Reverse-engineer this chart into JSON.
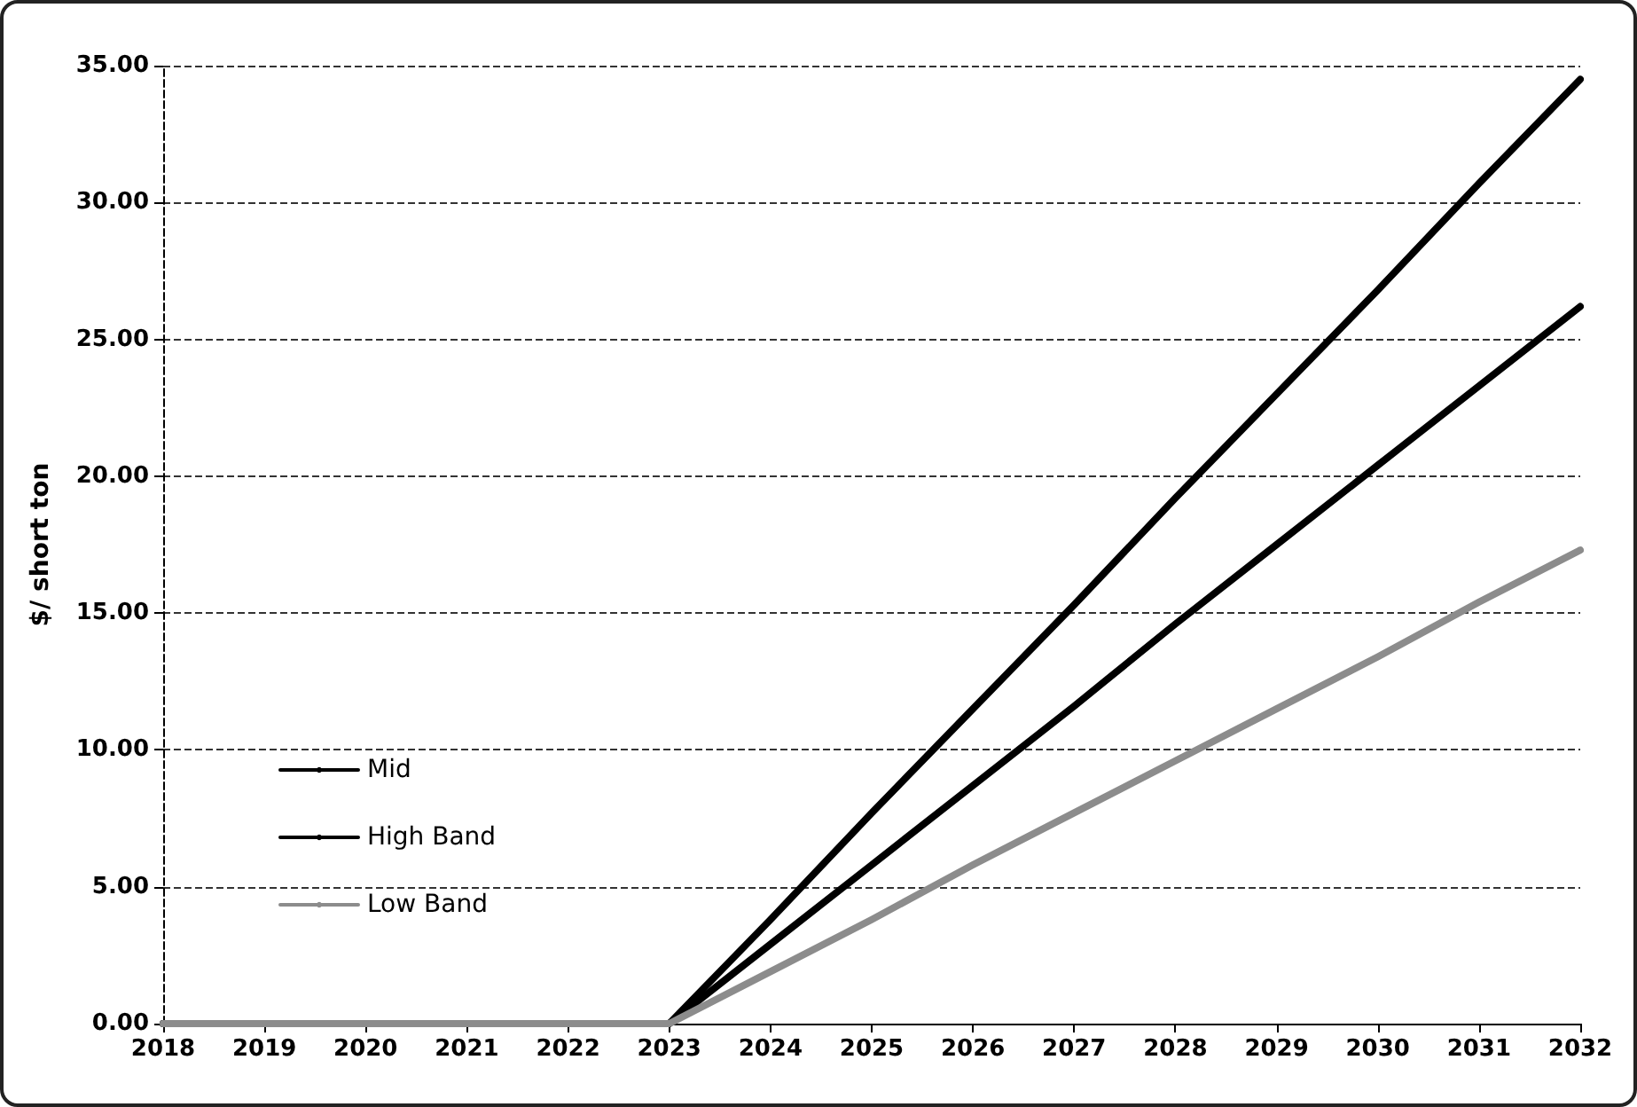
{
  "chart_data": {
    "type": "line",
    "ylabel": "$/ short ton",
    "x": [
      2018,
      2019,
      2020,
      2021,
      2022,
      2023,
      2024,
      2025,
      2026,
      2027,
      2028,
      2029,
      2030,
      2031,
      2032
    ],
    "series": [
      {
        "name": "Mid",
        "color": "#000000",
        "values": [
          0,
          0,
          0,
          0,
          0,
          0,
          2.9,
          5.8,
          8.7,
          11.6,
          14.6,
          17.5,
          20.4,
          23.3,
          26.2
        ]
      },
      {
        "name": "High Band",
        "color": "#000000",
        "values": [
          0,
          0,
          0,
          0,
          0,
          0,
          3.8,
          7.7,
          11.5,
          15.3,
          19.2,
          23.0,
          26.8,
          30.7,
          34.5
        ]
      },
      {
        "name": "Low Band",
        "color": "#8c8c8c",
        "values": [
          0,
          0,
          0,
          0,
          0,
          0,
          1.9,
          3.8,
          5.8,
          7.7,
          9.6,
          11.5,
          13.4,
          15.4,
          17.3
        ]
      }
    ],
    "xlim": [
      2018,
      2032
    ],
    "xticks": [
      2018,
      2019,
      2020,
      2021,
      2022,
      2023,
      2024,
      2025,
      2026,
      2027,
      2028,
      2029,
      2030,
      2031,
      2032
    ],
    "ylim": [
      0,
      35
    ],
    "yticks": [
      {
        "value": 0,
        "label": "0.00"
      },
      {
        "value": 5,
        "label": "5.00"
      },
      {
        "value": 10,
        "label": "10.00"
      },
      {
        "value": 15,
        "label": "15.00"
      },
      {
        "value": 20,
        "label": "20.00"
      },
      {
        "value": 25,
        "label": "25.00"
      },
      {
        "value": 30,
        "label": "30.00"
      },
      {
        "value": 35,
        "label": "35.00"
      }
    ],
    "grid": "y",
    "legend": "bottom left",
    "marker": "none",
    "line_style": "solid"
  }
}
